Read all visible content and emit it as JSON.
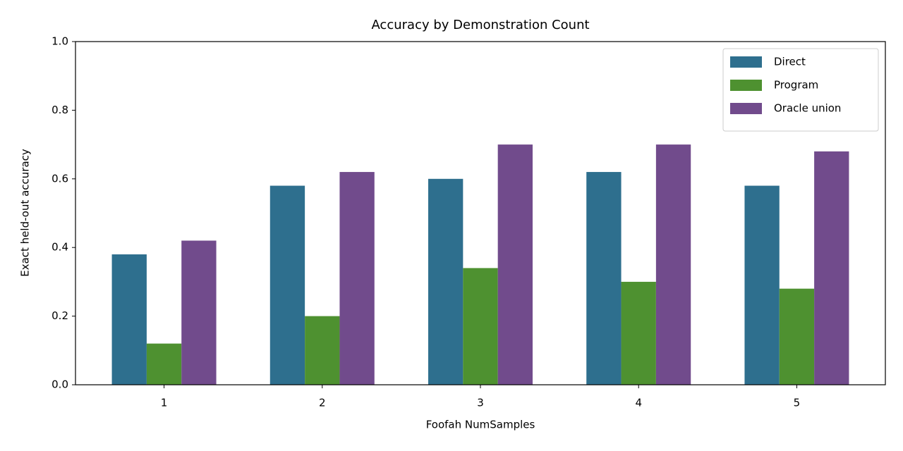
{
  "chart_data": {
    "type": "bar",
    "title": "Accuracy by Demonstration Count",
    "x_label": "Foofah NumSamples",
    "y_label": "Exact held-out accuracy",
    "categories": [
      "1",
      "2",
      "3",
      "4",
      "5"
    ],
    "series": [
      {
        "name": "Direct",
        "color": "#2e6f8e",
        "values": [
          0.38,
          0.58,
          0.6,
          0.62,
          0.58
        ]
      },
      {
        "name": "Program",
        "color": "#4e9130",
        "values": [
          0.12,
          0.2,
          0.34,
          0.3,
          0.28
        ]
      },
      {
        "name": "Oracle union",
        "color": "#714b8c",
        "values": [
          0.42,
          0.62,
          0.7,
          0.7,
          0.68
        ]
      }
    ],
    "ylim": [
      0,
      1
    ],
    "yticks": [
      {
        "value": 0,
        "label": "0.0"
      },
      0.2,
      0.4,
      0.6,
      0.8,
      {
        "value": 1,
        "label": "1.0"
      }
    ],
    "grid": false,
    "legend": "upper right"
  }
}
